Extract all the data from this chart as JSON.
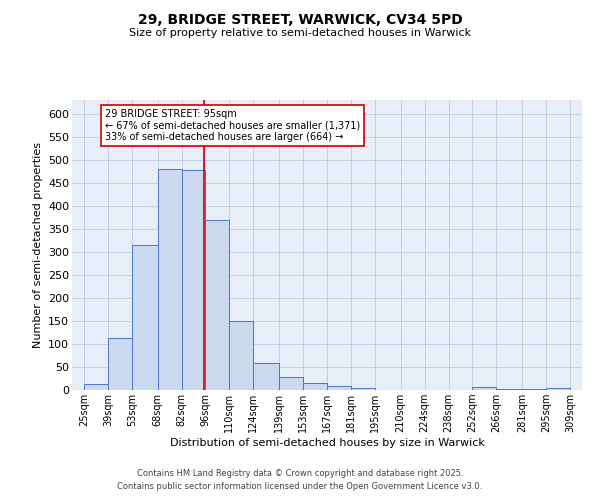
{
  "title1": "29, BRIDGE STREET, WARWICK, CV34 5PD",
  "title2": "Size of property relative to semi-detached houses in Warwick",
  "xlabel": "Distribution of semi-detached houses by size in Warwick",
  "ylabel": "Number of semi-detached properties",
  "footnote1": "Contains HM Land Registry data © Crown copyright and database right 2025.",
  "footnote2": "Contains public sector information licensed under the Open Government Licence v3.0.",
  "annotation_title": "29 BRIDGE STREET: 95sqm",
  "annotation_line1": "← 67% of semi-detached houses are smaller (1,371)",
  "annotation_line2": "33% of semi-detached houses are larger (664) →",
  "property_size": 95,
  "bar_left_edges": [
    25,
    39,
    53,
    68,
    82,
    96,
    110,
    124,
    139,
    153,
    167,
    181,
    195,
    210,
    224,
    238,
    252,
    266,
    281,
    295
  ],
  "bar_widths": [
    14,
    14,
    15,
    14,
    14,
    14,
    14,
    15,
    14,
    14,
    14,
    14,
    15,
    14,
    14,
    14,
    14,
    15,
    14,
    14
  ],
  "bar_heights": [
    13,
    113,
    315,
    480,
    478,
    370,
    150,
    59,
    29,
    15,
    9,
    5,
    1,
    0,
    0,
    0,
    6,
    3,
    2,
    4
  ],
  "tick_labels": [
    "25sqm",
    "39sqm",
    "53sqm",
    "68sqm",
    "82sqm",
    "96sqm",
    "110sqm",
    "124sqm",
    "139sqm",
    "153sqm",
    "167sqm",
    "181sqm",
    "195sqm",
    "210sqm",
    "224sqm",
    "238sqm",
    "252sqm",
    "266sqm",
    "281sqm",
    "295sqm",
    "309sqm"
  ],
  "tick_positions": [
    25,
    39,
    53,
    68,
    82,
    96,
    110,
    124,
    139,
    153,
    167,
    181,
    195,
    210,
    224,
    238,
    252,
    266,
    281,
    295,
    309
  ],
  "yticks": [
    0,
    50,
    100,
    150,
    200,
    250,
    300,
    350,
    400,
    450,
    500,
    550,
    600
  ],
  "ylim": [
    0,
    630
  ],
  "xlim": [
    18,
    316
  ],
  "bar_facecolor": "#ccd9ef",
  "bar_edgecolor": "#4a76c7",
  "red_line_color": "#cc0000",
  "grid_color": "#b8cce4",
  "bg_color": "#e8eef8",
  "annotation_box_color": "#cc0000",
  "title1_fontsize": 10,
  "title2_fontsize": 8,
  "xlabel_fontsize": 8,
  "ylabel_fontsize": 8,
  "tick_fontsize": 7,
  "ytick_fontsize": 8,
  "annotation_fontsize": 7,
  "footnote_fontsize": 6
}
